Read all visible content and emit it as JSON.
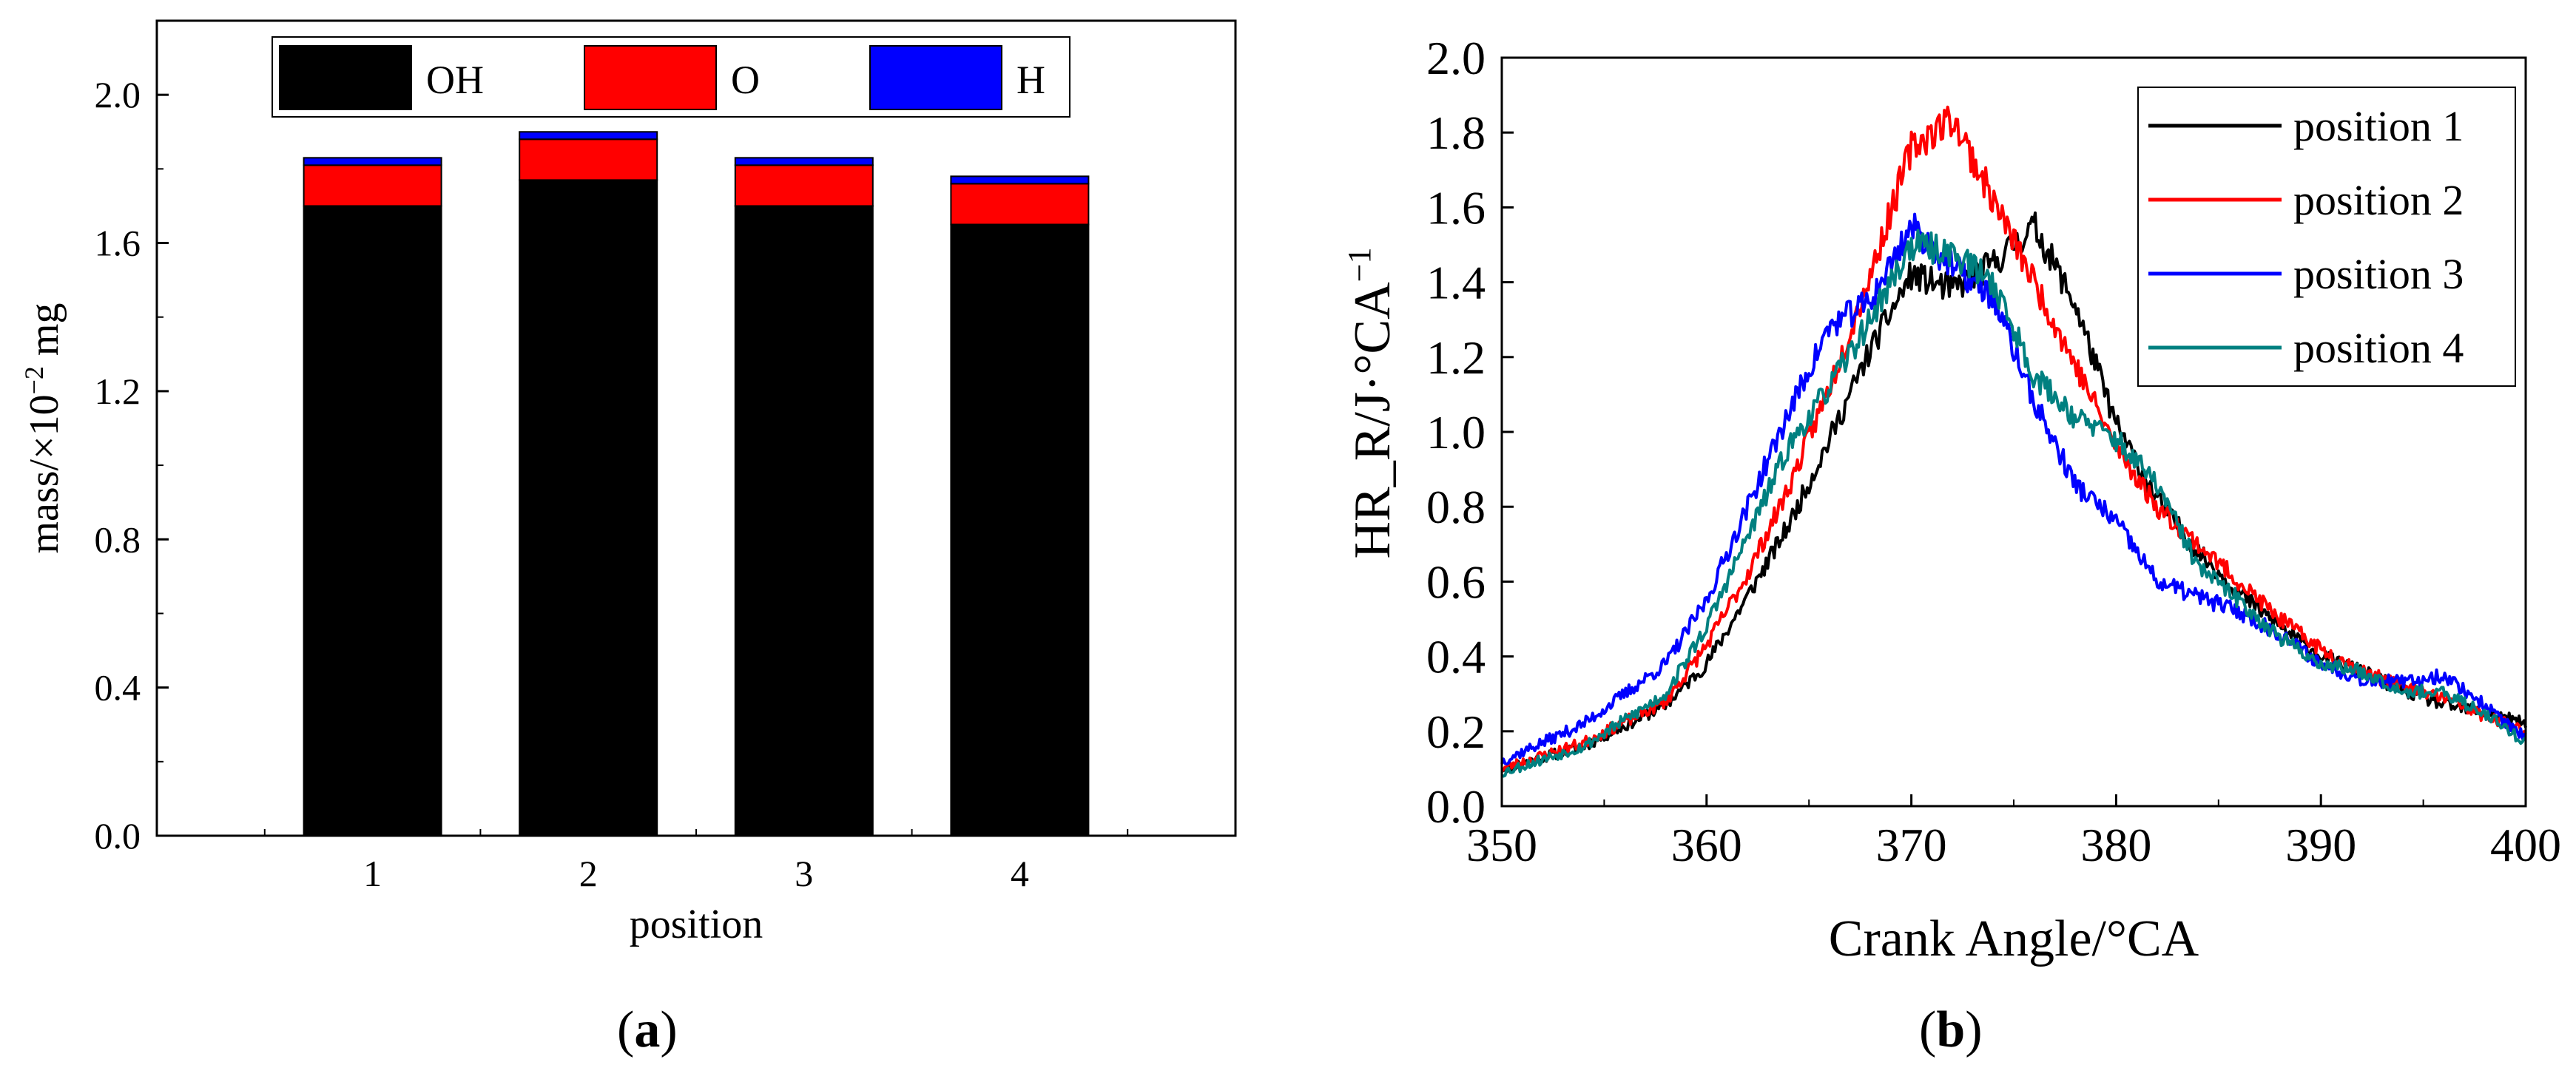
{
  "chart_data": [
    {
      "id": "a",
      "type": "bar",
      "stacked": true,
      "caption_letter": "a",
      "xlabel": "position",
      "ylabel": "mass/×10",
      "ylabel_sup": "−2",
      "ylabel_tail": " mg",
      "categories": [
        "1",
        "2",
        "3",
        "4"
      ],
      "series": [
        {
          "name": "OH",
          "color": "#000000",
          "values": [
            1.7,
            1.77,
            1.7,
            1.65
          ]
        },
        {
          "name": "O",
          "color": "#ff0000",
          "values": [
            0.11,
            0.11,
            0.11,
            0.11
          ]
        },
        {
          "name": "H",
          "color": "#0000ff",
          "values": [
            0.02,
            0.02,
            0.02,
            0.02
          ]
        }
      ],
      "ylim": [
        0,
        2.2
      ],
      "yticks": [
        "0.0",
        "0.4",
        "0.8",
        "1.2",
        "1.6",
        "2.0"
      ],
      "legend": "top"
    },
    {
      "id": "b",
      "type": "line",
      "caption_letter": "b",
      "xlabel": "Crank Angle/°CA",
      "ylabel": "HR_R/J·°CA",
      "ylabel_sup": "−1",
      "xlim": [
        350,
        400
      ],
      "ylim": [
        0,
        2.0
      ],
      "xticks": [
        "350",
        "360",
        "370",
        "380",
        "390",
        "400"
      ],
      "yticks": [
        "0.0",
        "0.2",
        "0.4",
        "0.6",
        "0.8",
        "1.0",
        "1.2",
        "1.4",
        "1.6",
        "1.8",
        "2.0"
      ],
      "legend": "top-right",
      "series": [
        {
          "name": "position 1",
          "color": "#000000",
          "seed": 11,
          "x": [
            350,
            354,
            358,
            360,
            362,
            364,
            366,
            368,
            370,
            372,
            374,
            376,
            378,
            380,
            382,
            384,
            386,
            388,
            390,
            392,
            394,
            396,
            398,
            400
          ],
          "y": [
            0.1,
            0.16,
            0.27,
            0.38,
            0.56,
            0.75,
            0.98,
            1.22,
            1.42,
            1.38,
            1.45,
            1.55,
            1.34,
            1.02,
            0.82,
            0.68,
            0.57,
            0.48,
            0.4,
            0.36,
            0.31,
            0.27,
            0.25,
            0.22
          ]
        },
        {
          "name": "position 2",
          "color": "#ff0000",
          "seed": 23,
          "x": [
            350,
            354,
            358,
            360,
            362,
            364,
            366,
            368,
            370,
            372,
            374,
            376,
            378,
            380,
            382,
            384,
            386,
            388,
            390,
            392,
            394,
            396,
            398,
            400
          ],
          "y": [
            0.1,
            0.17,
            0.28,
            0.43,
            0.62,
            0.85,
            1.12,
            1.42,
            1.76,
            1.84,
            1.62,
            1.4,
            1.18,
            0.96,
            0.8,
            0.7,
            0.6,
            0.5,
            0.42,
            0.36,
            0.32,
            0.29,
            0.24,
            0.2
          ]
        },
        {
          "name": "position 3",
          "color": "#0000ff",
          "seed": 37,
          "x": [
            350,
            354,
            358,
            360,
            362,
            364,
            366,
            368,
            370,
            372,
            374,
            376,
            378,
            380,
            382,
            384,
            386,
            388,
            390,
            392,
            394,
            396,
            398,
            400
          ],
          "y": [
            0.12,
            0.22,
            0.38,
            0.55,
            0.8,
            1.05,
            1.28,
            1.35,
            1.55,
            1.44,
            1.36,
            1.08,
            0.86,
            0.76,
            0.6,
            0.56,
            0.52,
            0.46,
            0.38,
            0.34,
            0.33,
            0.35,
            0.27,
            0.18
          ]
        },
        {
          "name": "position 4",
          "color": "#008080",
          "seed": 53,
          "x": [
            350,
            354,
            358,
            360,
            362,
            364,
            366,
            368,
            370,
            372,
            374,
            376,
            378,
            380,
            382,
            384,
            386,
            388,
            390,
            392,
            394,
            396,
            398,
            400
          ],
          "y": [
            0.09,
            0.16,
            0.3,
            0.48,
            0.72,
            0.96,
            1.12,
            1.3,
            1.5,
            1.48,
            1.4,
            1.15,
            1.04,
            0.98,
            0.86,
            0.64,
            0.55,
            0.45,
            0.38,
            0.36,
            0.31,
            0.3,
            0.25,
            0.17
          ]
        }
      ]
    }
  ]
}
